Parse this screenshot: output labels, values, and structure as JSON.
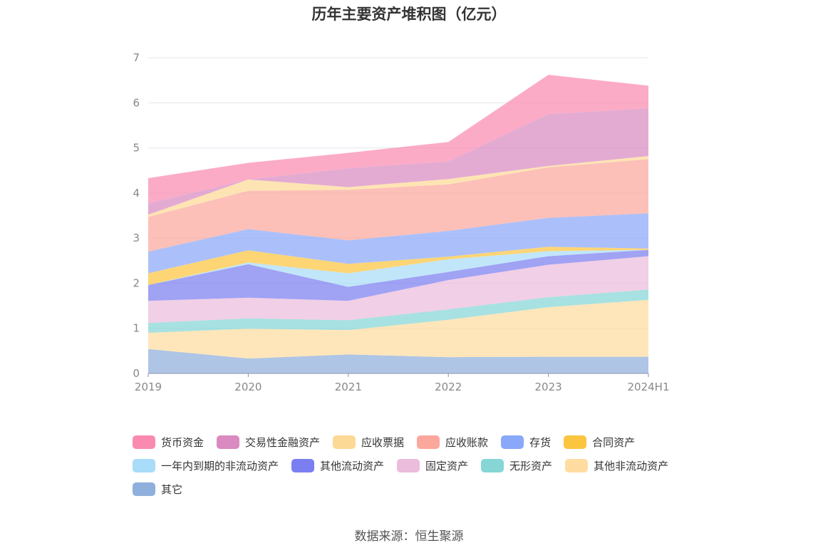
{
  "chart_data": {
    "type": "area",
    "stacked": true,
    "title": "历年主要资产堆积图（亿元）",
    "categories": [
      "2019",
      "2020",
      "2021",
      "2022",
      "2023",
      "2024H1"
    ],
    "ylim": [
      0,
      7
    ],
    "yticks": [
      0,
      1,
      2,
      3,
      4,
      5,
      6,
      7
    ],
    "grid": true,
    "legend_position": "bottom",
    "series": [
      {
        "name": "其它",
        "color": "#8fafdc",
        "values": [
          0.54,
          0.33,
          0.42,
          0.36,
          0.37,
          0.37
        ]
      },
      {
        "name": "其他非流动资产",
        "color": "#ffdca0",
        "values": [
          0.36,
          0.66,
          0.54,
          0.83,
          1.1,
          1.26
        ]
      },
      {
        "name": "无形资产",
        "color": "#86d6d6",
        "values": [
          0.22,
          0.23,
          0.22,
          0.23,
          0.22,
          0.23
        ]
      },
      {
        "name": "固定资产",
        "color": "#ecbcdc",
        "values": [
          0.49,
          0.46,
          0.43,
          0.65,
          0.72,
          0.74
        ]
      },
      {
        "name": "其他流动资产",
        "color": "#7b7ef0",
        "values": [
          0.35,
          0.74,
          0.31,
          0.18,
          0.19,
          0.14
        ]
      },
      {
        "name": "一年内到期的非流动资产",
        "color": "#a9dcf8",
        "values": [
          0.0,
          0.04,
          0.3,
          0.28,
          0.11,
          0.0
        ]
      },
      {
        "name": "合同资产",
        "color": "#fcc540",
        "values": [
          0.26,
          0.27,
          0.21,
          0.06,
          0.1,
          0.03
        ]
      },
      {
        "name": "存货",
        "color": "#8aa8fa",
        "values": [
          0.48,
          0.47,
          0.52,
          0.57,
          0.64,
          0.78
        ]
      },
      {
        "name": "应收账款",
        "color": "#fba79c",
        "values": [
          0.77,
          0.85,
          1.12,
          1.03,
          1.12,
          1.2
        ]
      },
      {
        "name": "应收票据",
        "color": "#fdd996",
        "values": [
          0.05,
          0.25,
          0.06,
          0.12,
          0.03,
          0.07
        ]
      },
      {
        "name": "交易性金融资产",
        "color": "#da8ac0",
        "values": [
          0.25,
          0.0,
          0.42,
          0.39,
          1.15,
          1.06
        ]
      },
      {
        "name": "货币资金",
        "color": "#fa8ab0",
        "values": [
          0.56,
          0.37,
          0.34,
          0.43,
          0.87,
          0.5
        ]
      }
    ],
    "legend_order": [
      "货币资金",
      "交易性金融资产",
      "应收票据",
      "应收账款",
      "存货",
      "合同资产",
      "一年内到期的非流动资产",
      "其他流动资产",
      "固定资产",
      "无形资产",
      "其他非流动资产",
      "其它"
    ]
  },
  "source": "数据来源：恒生聚源"
}
